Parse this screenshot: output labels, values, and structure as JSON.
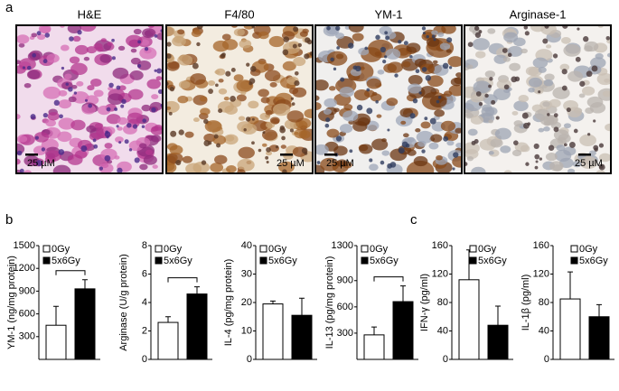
{
  "panel_labels": [
    "a",
    "b",
    "c"
  ],
  "images": [
    {
      "title": "H&E",
      "scale": "25 µM"
    },
    {
      "title": "F4/80",
      "scale": "25 µM"
    },
    {
      "title": "YM-1",
      "scale": "25 µM"
    },
    {
      "title": "Arginase-1",
      "scale": "25 µM"
    }
  ],
  "chart_data": [
    {
      "type": "bar",
      "ylabel": "YM-1 (ng/mg protein)",
      "categories": [
        null
      ],
      "ylim": [
        0,
        1500
      ],
      "yticks": [
        300,
        600,
        900,
        1200,
        1500
      ],
      "legend": "upper left",
      "bracket": true,
      "series": [
        {
          "name": "0Gy",
          "color": "#ffffff",
          "values": [
            450
          ],
          "errors": [
            250
          ]
        },
        {
          "name": "5x6Gy",
          "color": "#000000",
          "values": [
            930
          ],
          "errors": [
            120
          ]
        }
      ]
    },
    {
      "type": "bar",
      "ylabel": "Arginase (U/g protein)",
      "categories": [
        null
      ],
      "ylim": [
        0,
        8
      ],
      "yticks": [
        0,
        2,
        4,
        6,
        8
      ],
      "legend": "upper left",
      "bracket": true,
      "series": [
        {
          "name": "0Gy",
          "color": "#ffffff",
          "values": [
            2.6
          ],
          "errors": [
            0.4
          ]
        },
        {
          "name": "5x6Gy",
          "color": "#000000",
          "values": [
            4.6
          ],
          "errors": [
            0.5
          ]
        }
      ]
    },
    {
      "type": "bar",
      "ylabel": "IL-4 (pg/mg protein)",
      "categories": [
        null
      ],
      "ylim": [
        0,
        40
      ],
      "yticks": [
        0,
        10,
        20,
        30,
        40
      ],
      "legend": "upper left",
      "bracket": false,
      "series": [
        {
          "name": "0Gy",
          "color": "#ffffff",
          "values": [
            19.5
          ],
          "errors": [
            1
          ]
        },
        {
          "name": "5x6Gy",
          "color": "#000000",
          "values": [
            15.5
          ],
          "errors": [
            6
          ]
        }
      ]
    },
    {
      "type": "bar",
      "ylabel": "IL-13 (pg/mg protein)",
      "categories": [
        null
      ],
      "ylim": [
        0,
        1300
      ],
      "yticks": [
        300,
        600,
        900,
        1300
      ],
      "legend": "upper left",
      "bracket": true,
      "series": [
        {
          "name": "0Gy",
          "color": "#ffffff",
          "values": [
            280
          ],
          "errors": [
            90
          ]
        },
        {
          "name": "5x6Gy",
          "color": "#000000",
          "values": [
            660
          ],
          "errors": [
            180
          ]
        }
      ]
    },
    {
      "type": "bar",
      "ylabel": "IFN-γ (pg/ml)",
      "categories": [
        null
      ],
      "ylim": [
        0,
        160
      ],
      "yticks": [
        0,
        40,
        80,
        120,
        160
      ],
      "legend": "upper right",
      "bracket": false,
      "series": [
        {
          "name": "0Gy",
          "color": "#ffffff",
          "values": [
            112
          ],
          "errors": [
            42
          ]
        },
        {
          "name": "5x6Gy",
          "color": "#000000",
          "values": [
            48
          ],
          "errors": [
            27
          ]
        }
      ]
    },
    {
      "type": "bar",
      "ylabel": "IL-1β (pg/ml)",
      "categories": [
        null
      ],
      "ylim": [
        0,
        160
      ],
      "yticks": [
        0,
        40,
        80,
        120,
        160
      ],
      "legend": "upper right",
      "bracket": false,
      "series": [
        {
          "name": "0Gy",
          "color": "#ffffff",
          "values": [
            85
          ],
          "errors": [
            38
          ]
        },
        {
          "name": "5x6Gy",
          "color": "#000000",
          "values": [
            60
          ],
          "errors": [
            17
          ]
        }
      ]
    }
  ]
}
